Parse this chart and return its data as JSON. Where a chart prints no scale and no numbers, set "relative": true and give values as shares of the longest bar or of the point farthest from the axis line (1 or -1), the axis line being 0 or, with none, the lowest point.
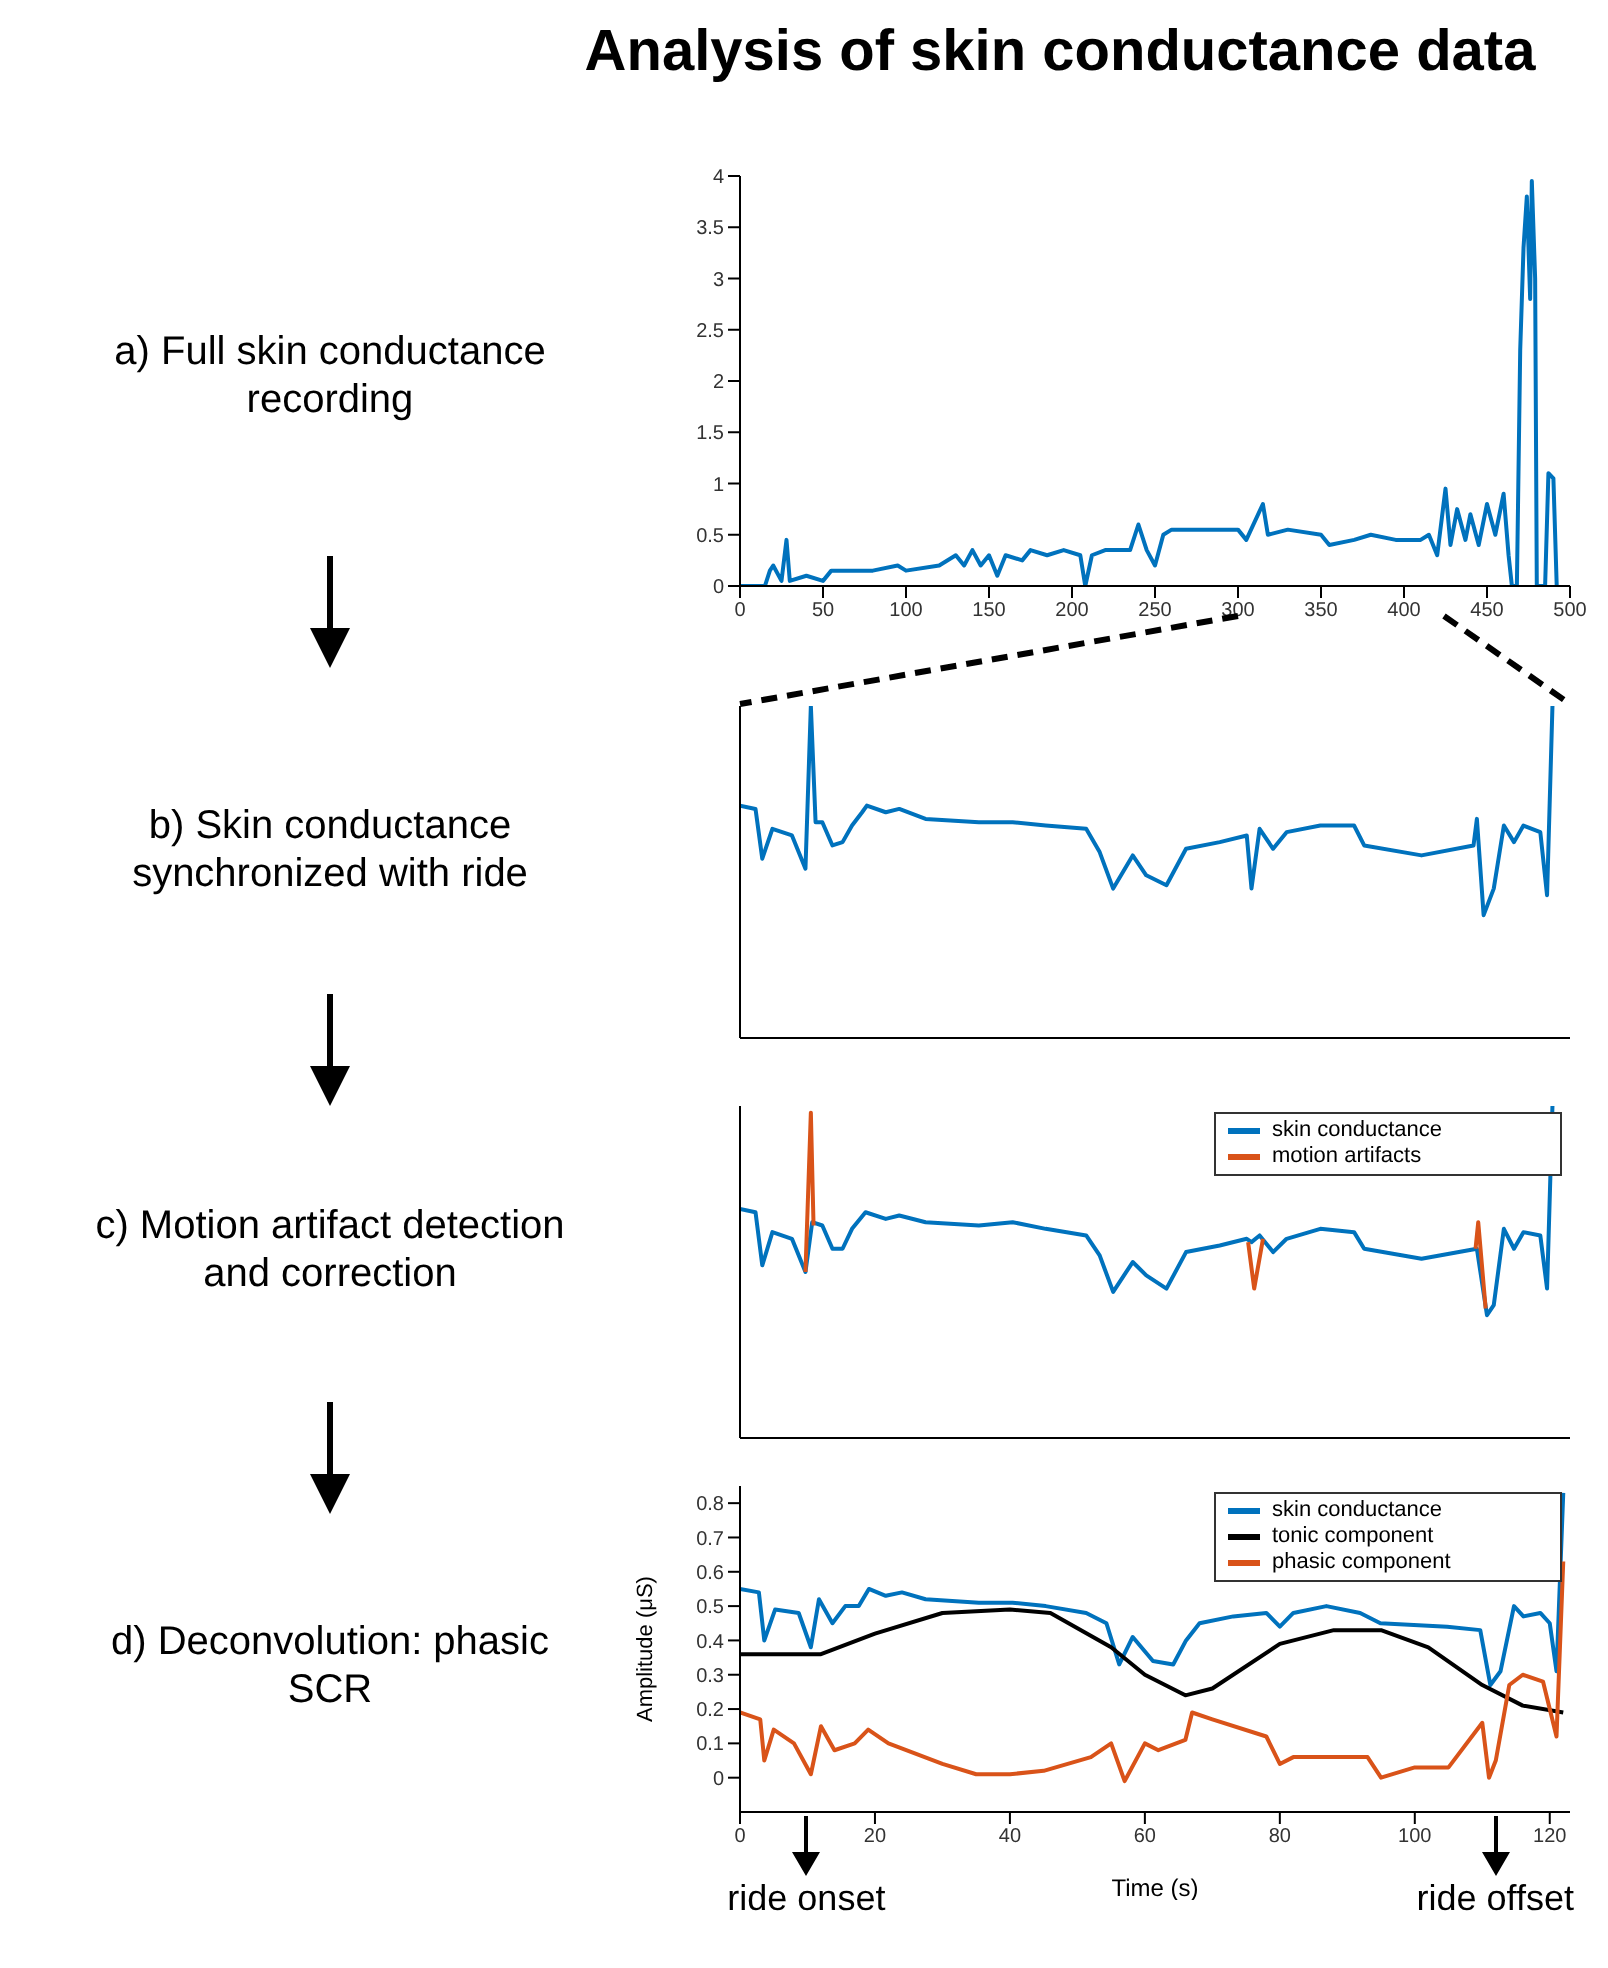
{
  "chart_data": [
    {
      "type": "line",
      "title": "Analysis of skin conductance data",
      "subtitle": "a) Full skin conductance recording",
      "xlim": [
        0,
        500
      ],
      "xticks": [
        0,
        50,
        100,
        150,
        200,
        250,
        300,
        350,
        400,
        450,
        500
      ],
      "ylim": [
        0,
        4
      ],
      "yticks": [
        0,
        0.5,
        1,
        1.5,
        2,
        2.5,
        3,
        3.5,
        4
      ],
      "grid": false,
      "legend": false,
      "series": [
        {
          "color": "#0072bd",
          "x": [
            0,
            15,
            18,
            20,
            25,
            28,
            30,
            40,
            50,
            55,
            70,
            80,
            95,
            100,
            120,
            130,
            135,
            140,
            145,
            150,
            155,
            160,
            170,
            175,
            185,
            195,
            205,
            208,
            212,
            220,
            235,
            240,
            245,
            250,
            255,
            260,
            300,
            305,
            315,
            318,
            330,
            350,
            355,
            370,
            380,
            395,
            410,
            415,
            420,
            425,
            428,
            432,
            437,
            440,
            445,
            450,
            455,
            460,
            463,
            465,
            468,
            470,
            472,
            474,
            476,
            477,
            479,
            480,
            485,
            487,
            490,
            492
          ],
          "values": [
            0,
            0,
            0.15,
            0.2,
            0.05,
            0.45,
            0.05,
            0.1,
            0.05,
            0.15,
            0.15,
            0.15,
            0.2,
            0.15,
            0.2,
            0.3,
            0.2,
            0.35,
            0.2,
            0.3,
            0.1,
            0.3,
            0.25,
            0.35,
            0.3,
            0.35,
            0.3,
            0,
            0.3,
            0.35,
            0.35,
            0.6,
            0.35,
            0.2,
            0.5,
            0.55,
            0.55,
            0.45,
            0.8,
            0.5,
            0.55,
            0.5,
            0.4,
            0.45,
            0.5,
            0.45,
            0.45,
            0.5,
            0.3,
            0.95,
            0.4,
            0.75,
            0.45,
            0.7,
            0.4,
            0.8,
            0.5,
            0.9,
            0.3,
            0,
            0,
            2.3,
            3.3,
            3.8,
            2.8,
            3.95,
            3.0,
            0,
            0,
            1.1,
            1.05,
            0
          ]
        }
      ]
    },
    {
      "type": "line",
      "title": "b) Skin conductance synchronized with ride",
      "relative": true,
      "xlim": [
        0,
        123
      ],
      "xticks": [
        0,
        20,
        40,
        60,
        80,
        100,
        120
      ],
      "tick_labels": false,
      "grid": false,
      "legend": false,
      "series": [
        {
          "color": "#0072bd",
          "x": [
            0,
            2.3,
            3.3,
            4.8,
            7.7,
            9.7,
            10.5,
            11.2,
            12.2,
            13.7,
            15.2,
            16.6,
            18.1,
            18.8,
            21.6,
            23.6,
            27.5,
            35.4,
            40.4,
            45.3,
            51.3,
            53.3,
            55.3,
            58.2,
            60.2,
            63.2,
            66.1,
            71.1,
            75.1,
            75.8,
            77,
            79,
            81,
            86,
            91,
            92.5,
            101,
            108.7,
            109.2,
            110.2,
            111.7,
            113.2,
            114.7,
            116.1,
            118.6,
            119.6,
            120.4
          ],
          "values": [
            0.7,
            0.69,
            0.54,
            0.63,
            0.61,
            0.51,
            1,
            0.65,
            0.65,
            0.58,
            0.59,
            0.64,
            0.68,
            0.7,
            0.68,
            0.69,
            0.66,
            0.65,
            0.65,
            0.64,
            0.63,
            0.56,
            0.45,
            0.55,
            0.49,
            0.46,
            0.57,
            0.59,
            0.61,
            0.45,
            0.63,
            0.57,
            0.62,
            0.64,
            0.64,
            0.58,
            0.55,
            0.58,
            0.66,
            0.37,
            0.45,
            0.64,
            0.59,
            0.64,
            0.62,
            0.43,
            1
          ]
        }
      ]
    },
    {
      "type": "line",
      "title": "c) Motion artifact detection and correction",
      "relative": true,
      "xlim": [
        0,
        123
      ],
      "xticks": [
        0,
        20,
        40,
        60,
        80,
        100,
        120
      ],
      "tick_labels": false,
      "grid": false,
      "legend": "top right",
      "series": [
        {
          "name": "skin conductance",
          "color": "#0072bd",
          "x": [
            0,
            2.3,
            3.3,
            4.8,
            7.7,
            9.7,
            10.7,
            12.2,
            13.7,
            15.2,
            16.6,
            18.6,
            21.6,
            23.6,
            27.5,
            35.4,
            40.4,
            45.3,
            51.3,
            53.3,
            55.3,
            58.2,
            60.2,
            63.2,
            66.1,
            71.1,
            75.1,
            75.8,
            77,
            79,
            81,
            86,
            91,
            92.5,
            101,
            109.2,
            110.7,
            111.7,
            113.2,
            114.7,
            116.1,
            118.6,
            119.6,
            120.4
          ],
          "values": [
            0.69,
            0.68,
            0.52,
            0.62,
            0.6,
            0.5,
            0.65,
            0.64,
            0.57,
            0.57,
            0.63,
            0.68,
            0.66,
            0.67,
            0.65,
            0.64,
            0.65,
            0.63,
            0.61,
            0.55,
            0.44,
            0.53,
            0.49,
            0.45,
            0.56,
            0.58,
            0.6,
            0.59,
            0.61,
            0.56,
            0.6,
            0.63,
            0.62,
            0.57,
            0.54,
            0.57,
            0.37,
            0.4,
            0.63,
            0.57,
            0.62,
            0.61,
            0.45,
            1
          ]
        },
        {
          "name": "motion artifacts",
          "color": "#d95319",
          "x": [
            9.7,
            10.5,
            10.9,
            11,
            75.3,
            76.2,
            77.5,
            77.6,
            109,
            109.4,
            110.5
          ],
          "values": [
            0.5,
            0.98,
            0.64,
            null,
            0.59,
            0.45,
            0.6,
            null,
            0.57,
            0.65,
            0.39
          ]
        }
      ]
    },
    {
      "type": "line",
      "title": "d) Deconvolution: phasic SCR",
      "xlabel": "Time (s)",
      "ylabel": "Amplitude (μS)",
      "xlim": [
        0,
        123
      ],
      "xticks": [
        0,
        20,
        40,
        60,
        80,
        100,
        120
      ],
      "ylim": [
        -0.1,
        0.85
      ],
      "yticks": [
        0,
        0.1,
        0.2,
        0.3,
        0.4,
        0.5,
        0.6,
        0.7,
        0.8
      ],
      "grid": false,
      "legend": "top right",
      "annotations": [
        "ride onset",
        "ride offset"
      ],
      "series": [
        {
          "name": "skin conductance",
          "color": "#0072bd",
          "x": [
            0,
            2.8,
            3.6,
            5.2,
            8.7,
            10.5,
            11.7,
            13.7,
            15.6,
            17.6,
            19.1,
            21.6,
            24,
            27.5,
            35.4,
            40.4,
            45.3,
            51.3,
            54.3,
            56.2,
            58.2,
            61.2,
            64.2,
            66.1,
            68.1,
            73.1,
            78,
            80,
            82,
            86.9,
            91.9,
            94.9,
            104.8,
            109.7,
            111.2,
            112.7,
            114.7,
            116.1,
            118.6,
            120,
            121,
            122
          ],
          "values": [
            0.55,
            0.54,
            0.4,
            0.49,
            0.48,
            0.38,
            0.52,
            0.45,
            0.5,
            0.5,
            0.55,
            0.53,
            0.54,
            0.52,
            0.51,
            0.51,
            0.5,
            0.48,
            0.45,
            0.33,
            0.41,
            0.34,
            0.33,
            0.4,
            0.45,
            0.47,
            0.48,
            0.44,
            0.48,
            0.5,
            0.48,
            0.45,
            0.44,
            0.43,
            0.27,
            0.31,
            0.5,
            0.47,
            0.48,
            0.45,
            0.31,
            0.83
          ]
        },
        {
          "name": "tonic component",
          "color": "#000000",
          "x": [
            0,
            12,
            20,
            30,
            40,
            46,
            55,
            60,
            66,
            70,
            80,
            88,
            95,
            102,
            110,
            116,
            122
          ],
          "values": [
            0.36,
            0.36,
            0.42,
            0.48,
            0.49,
            0.48,
            0.38,
            0.3,
            0.24,
            0.26,
            0.39,
            0.43,
            0.43,
            0.38,
            0.27,
            0.21,
            0.19
          ]
        },
        {
          "name": "phasic component",
          "color": "#d95319",
          "x": [
            0,
            3,
            3.6,
            5,
            8,
            10.5,
            12,
            14,
            17,
            19,
            22,
            30,
            35,
            40,
            45,
            52,
            55,
            57,
            60,
            62,
            66,
            67,
            70,
            78,
            80,
            82,
            93,
            95,
            100,
            105,
            110,
            111,
            112,
            114,
            116,
            119,
            121,
            122
          ],
          "values": [
            0.19,
            0.17,
            0.05,
            0.14,
            0.1,
            0.01,
            0.15,
            0.08,
            0.1,
            0.14,
            0.1,
            0.04,
            0.01,
            0.01,
            0.02,
            0.06,
            0.1,
            -0.01,
            0.1,
            0.08,
            0.11,
            0.19,
            0.17,
            0.12,
            0.04,
            0.06,
            0.06,
            0,
            0.03,
            0.03,
            0.16,
            0,
            0.05,
            0.27,
            0.3,
            0.28,
            0.12,
            0.63
          ]
        }
      ]
    }
  ]
}
